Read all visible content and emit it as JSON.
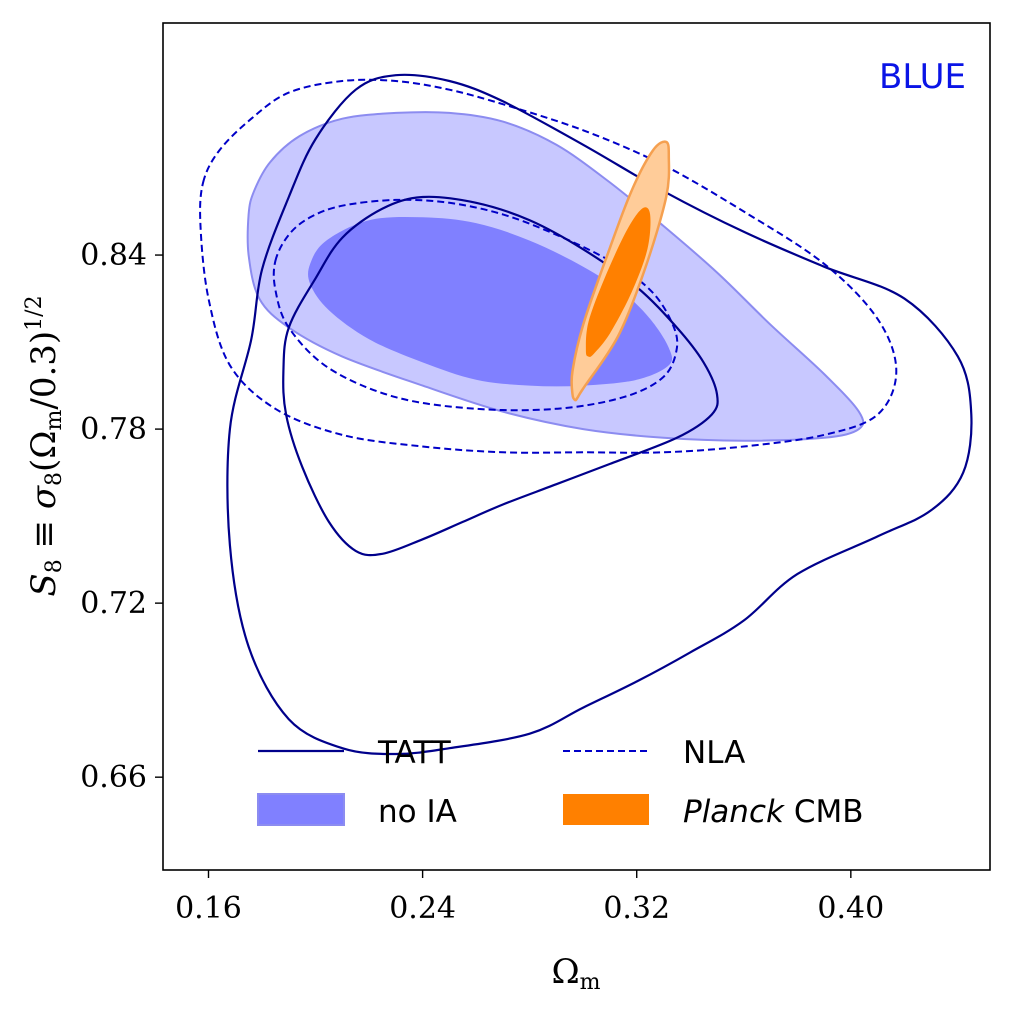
{
  "chart_data": {
    "type": "contour",
    "panel_label": "BLUE",
    "panel_label_color": "#0a14e6",
    "x_label_base": "Ω",
    "x_label_sub": "m",
    "y_label": {
      "s": "S",
      "s_sub": "8",
      "equiv": "≡",
      "sigma": "σ",
      "sigma_sub": "8",
      "open": "(",
      "omega": "Ω",
      "omega_sub": "m",
      "ratio": "/0.3)",
      "power": "1/2"
    },
    "xlim": [
      0.143,
      0.452
    ],
    "ylim": [
      0.628,
      0.92
    ],
    "x_ticks": [
      0.16,
      0.24,
      0.32,
      0.4
    ],
    "x_tick_labels": [
      "0.16",
      "0.24",
      "0.32",
      "0.40"
    ],
    "y_ticks": [
      0.66,
      0.72,
      0.78,
      0.84
    ],
    "y_tick_labels": [
      "0.66",
      "0.72",
      "0.78",
      "0.84"
    ],
    "colors": {
      "tatt": "#00008b",
      "nla": "#0000c8",
      "noia_inner": "#8080ff",
      "noia_outer": "#c8c8ff",
      "noia_edge": "#8c8cf0",
      "planck_inner": "#ff8000",
      "planck_outer": "#ffcc99",
      "planck_edge": "#f5a050"
    },
    "series": [
      {
        "name": "no IA (68%)",
        "style": "filled",
        "level": "inner",
        "points": [
          [
            0.198,
            0.837
          ],
          [
            0.204,
            0.845
          ],
          [
            0.22,
            0.852
          ],
          [
            0.24,
            0.853
          ],
          [
            0.26,
            0.851
          ],
          [
            0.28,
            0.845
          ],
          [
            0.3,
            0.836
          ],
          [
            0.315,
            0.827
          ],
          [
            0.325,
            0.818
          ],
          [
            0.332,
            0.808
          ],
          [
            0.332,
            0.802
          ],
          [
            0.32,
            0.797
          ],
          [
            0.3,
            0.795
          ],
          [
            0.28,
            0.795
          ],
          [
            0.26,
            0.797
          ],
          [
            0.24,
            0.803
          ],
          [
            0.22,
            0.811
          ],
          [
            0.205,
            0.821
          ],
          [
            0.198,
            0.83
          ]
        ]
      },
      {
        "name": "no IA (95%)",
        "style": "filled",
        "level": "outer",
        "points": [
          [
            0.175,
            0.854
          ],
          [
            0.177,
            0.862
          ],
          [
            0.183,
            0.872
          ],
          [
            0.194,
            0.881
          ],
          [
            0.21,
            0.887
          ],
          [
            0.23,
            0.889
          ],
          [
            0.25,
            0.889
          ],
          [
            0.27,
            0.886
          ],
          [
            0.29,
            0.878
          ],
          [
            0.31,
            0.865
          ],
          [
            0.33,
            0.85
          ],
          [
            0.35,
            0.834
          ],
          [
            0.37,
            0.816
          ],
          [
            0.39,
            0.799
          ],
          [
            0.403,
            0.786
          ],
          [
            0.403,
            0.78
          ],
          [
            0.39,
            0.777
          ],
          [
            0.36,
            0.776
          ],
          [
            0.33,
            0.777
          ],
          [
            0.3,
            0.78
          ],
          [
            0.27,
            0.786
          ],
          [
            0.24,
            0.795
          ],
          [
            0.21,
            0.805
          ],
          [
            0.19,
            0.815
          ],
          [
            0.179,
            0.825
          ],
          [
            0.175,
            0.84
          ]
        ]
      },
      {
        "name": "NLA (68%)",
        "style": "dashed",
        "level": "inner",
        "points": [
          [
            0.185,
            0.838
          ],
          [
            0.19,
            0.847
          ],
          [
            0.198,
            0.853
          ],
          [
            0.21,
            0.857
          ],
          [
            0.23,
            0.859
          ],
          [
            0.25,
            0.858
          ],
          [
            0.27,
            0.854
          ],
          [
            0.29,
            0.847
          ],
          [
            0.31,
            0.838
          ],
          [
            0.325,
            0.828
          ],
          [
            0.333,
            0.817
          ],
          [
            0.335,
            0.808
          ],
          [
            0.33,
            0.798
          ],
          [
            0.315,
            0.791
          ],
          [
            0.29,
            0.787
          ],
          [
            0.26,
            0.787
          ],
          [
            0.23,
            0.791
          ],
          [
            0.205,
            0.801
          ],
          [
            0.19,
            0.815
          ],
          [
            0.185,
            0.828
          ]
        ]
      },
      {
        "name": "NLA (95%)",
        "style": "dashed",
        "level": "outer",
        "points": [
          [
            0.158,
            0.865
          ],
          [
            0.164,
            0.876
          ],
          [
            0.176,
            0.887
          ],
          [
            0.19,
            0.896
          ],
          [
            0.21,
            0.9
          ],
          [
            0.23,
            0.9
          ],
          [
            0.25,
            0.897
          ],
          [
            0.27,
            0.892
          ],
          [
            0.3,
            0.883
          ],
          [
            0.33,
            0.871
          ],
          [
            0.36,
            0.855
          ],
          [
            0.39,
            0.837
          ],
          [
            0.41,
            0.818
          ],
          [
            0.417,
            0.8
          ],
          [
            0.41,
            0.785
          ],
          [
            0.39,
            0.778
          ],
          [
            0.36,
            0.774
          ],
          [
            0.33,
            0.772
          ],
          [
            0.3,
            0.772
          ],
          [
            0.27,
            0.772
          ],
          [
            0.24,
            0.774
          ],
          [
            0.21,
            0.778
          ],
          [
            0.185,
            0.787
          ],
          [
            0.168,
            0.802
          ],
          [
            0.16,
            0.825
          ],
          [
            0.157,
            0.85
          ]
        ]
      },
      {
        "name": "TATT (68%)",
        "style": "solid",
        "level": "inner",
        "points": [
          [
            0.188,
            0.8
          ],
          [
            0.19,
            0.815
          ],
          [
            0.2,
            0.832
          ],
          [
            0.21,
            0.846
          ],
          [
            0.225,
            0.856
          ],
          [
            0.24,
            0.86
          ],
          [
            0.26,
            0.858
          ],
          [
            0.28,
            0.852
          ],
          [
            0.3,
            0.842
          ],
          [
            0.32,
            0.829
          ],
          [
            0.335,
            0.815
          ],
          [
            0.345,
            0.803
          ],
          [
            0.35,
            0.792
          ],
          [
            0.348,
            0.785
          ],
          [
            0.335,
            0.777
          ],
          [
            0.31,
            0.768
          ],
          [
            0.29,
            0.761
          ],
          [
            0.27,
            0.754
          ],
          [
            0.255,
            0.748
          ],
          [
            0.24,
            0.742
          ],
          [
            0.225,
            0.737
          ],
          [
            0.215,
            0.738
          ],
          [
            0.205,
            0.748
          ],
          [
            0.195,
            0.767
          ],
          [
            0.189,
            0.785
          ]
        ]
      },
      {
        "name": "TATT (95%)",
        "style": "solid",
        "level": "outer",
        "points": [
          [
            0.176,
            0.811
          ],
          [
            0.18,
            0.835
          ],
          [
            0.19,
            0.86
          ],
          [
            0.2,
            0.88
          ],
          [
            0.215,
            0.897
          ],
          [
            0.23,
            0.902
          ],
          [
            0.25,
            0.9
          ],
          [
            0.27,
            0.893
          ],
          [
            0.3,
            0.878
          ],
          [
            0.33,
            0.862
          ],
          [
            0.36,
            0.848
          ],
          [
            0.39,
            0.836
          ],
          [
            0.42,
            0.825
          ],
          [
            0.44,
            0.805
          ],
          [
            0.445,
            0.785
          ],
          [
            0.442,
            0.765
          ],
          [
            0.43,
            0.752
          ],
          [
            0.41,
            0.743
          ],
          [
            0.38,
            0.73
          ],
          [
            0.36,
            0.714
          ],
          [
            0.34,
            0.703
          ],
          [
            0.32,
            0.693
          ],
          [
            0.3,
            0.684
          ],
          [
            0.28,
            0.675
          ],
          [
            0.25,
            0.67
          ],
          [
            0.23,
            0.668
          ],
          [
            0.21,
            0.67
          ],
          [
            0.19,
            0.68
          ],
          [
            0.175,
            0.705
          ],
          [
            0.168,
            0.74
          ],
          [
            0.168,
            0.78
          ]
        ]
      },
      {
        "name": "Planck CMB (95%)",
        "style": "filled",
        "level": "outer",
        "points": [
          [
            0.3,
            0.794
          ],
          [
            0.298,
            0.791
          ],
          [
            0.297,
            0.79
          ],
          [
            0.296,
            0.792
          ],
          [
            0.296,
            0.8
          ],
          [
            0.3,
            0.816
          ],
          [
            0.309,
            0.84
          ],
          [
            0.318,
            0.862
          ],
          [
            0.326,
            0.876
          ],
          [
            0.331,
            0.879
          ],
          [
            0.332,
            0.874
          ],
          [
            0.331,
            0.86
          ],
          [
            0.323,
            0.835
          ],
          [
            0.313,
            0.812
          ]
        ]
      },
      {
        "name": "Planck CMB (68%)",
        "style": "filled",
        "level": "inner",
        "points": [
          [
            0.304,
            0.806
          ],
          [
            0.302,
            0.805
          ],
          [
            0.301,
            0.807
          ],
          [
            0.302,
            0.817
          ],
          [
            0.308,
            0.832
          ],
          [
            0.316,
            0.848
          ],
          [
            0.322,
            0.856
          ],
          [
            0.325,
            0.854
          ],
          [
            0.324,
            0.842
          ],
          [
            0.318,
            0.827
          ],
          [
            0.31,
            0.813
          ]
        ]
      }
    ],
    "legend": [
      {
        "label": "TATT",
        "kind": "solid"
      },
      {
        "label": "NLA",
        "kind": "dashed"
      },
      {
        "label": "no IA",
        "kind": "patch-blue"
      },
      {
        "label_italic": "Planck",
        "label": "CMB",
        "kind": "patch-orange"
      }
    ],
    "legend_position": "lower center",
    "grid": false
  }
}
